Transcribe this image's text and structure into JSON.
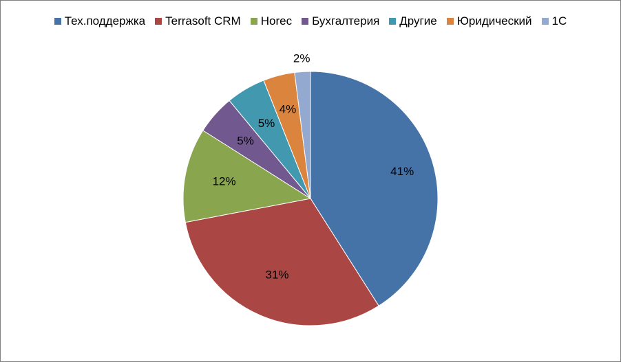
{
  "chart_data": {
    "type": "pie",
    "title": "",
    "legend_position": "top",
    "slices": [
      {
        "label": "Тех.поддержка",
        "value": 41,
        "value_label": "41%",
        "color": "#4573a7"
      },
      {
        "label": "Terrasoft CRM",
        "value": 31,
        "value_label": "31%",
        "color": "#aa4643"
      },
      {
        "label": "Horec",
        "value": 12,
        "value_label": "12%",
        "color": "#89a54e"
      },
      {
        "label": "Бухгалтерия",
        "value": 5,
        "value_label": "5%",
        "color": "#71588f"
      },
      {
        "label": "Другие",
        "value": 5,
        "value_label": "5%",
        "color": "#4198af"
      },
      {
        "label": "Юридический",
        "value": 4,
        "value_label": "4%",
        "color": "#db843d"
      },
      {
        "label": "1C",
        "value": 2,
        "value_label": "2%",
        "color": "#93a9cf"
      }
    ]
  }
}
